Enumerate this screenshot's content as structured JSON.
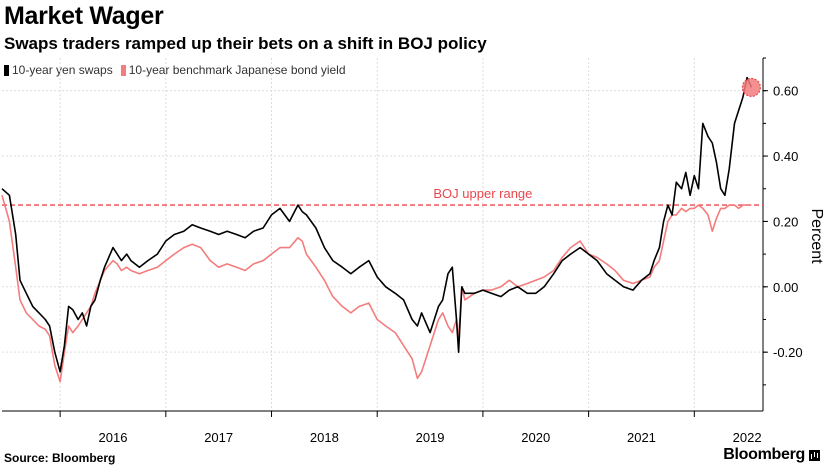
{
  "title": "Market Wager",
  "subtitle": "Swaps traders ramped up their bets on a shift in BOJ policy",
  "legend": [
    {
      "label": "10-year yen swaps",
      "color": "#000000"
    },
    {
      "label": "10-year benchmark Japanese bond yield",
      "color": "#f47c7c"
    }
  ],
  "source": "Source: Bloomberg",
  "brand": "Bloomberg",
  "chart_data": {
    "type": "line",
    "ylabel": "Percent",
    "ylim": [
      -0.38,
      0.7
    ],
    "xlim": [
      2015.45,
      2022.65
    ],
    "yticks": [
      -0.2,
      0.0,
      0.2,
      0.4,
      0.6
    ],
    "ytick_labels": [
      "-0.20",
      "0.00",
      "0.20",
      "0.40",
      "0.60"
    ],
    "xticks": [
      2016,
      2017,
      2018,
      2019,
      2020,
      2021,
      2022
    ],
    "xtick_labels": [
      "2016",
      "2017",
      "2018",
      "2019",
      "2020",
      "2021",
      "2022"
    ],
    "grid": true,
    "reference_line": {
      "y": 0.25,
      "label": "BOJ upper range",
      "color": "#e8464c"
    },
    "highlight": {
      "x": 2022.54,
      "y": 0.61,
      "color": "#f47c7c"
    },
    "series": [
      {
        "name": "10-year yen swaps",
        "color": "#000000",
        "x": [
          2015.45,
          2015.52,
          2015.58,
          2015.62,
          2015.68,
          2015.74,
          2015.8,
          2015.86,
          2015.9,
          2015.95,
          2016.0,
          2016.04,
          2016.08,
          2016.12,
          2016.17,
          2016.21,
          2016.25,
          2016.29,
          2016.33,
          2016.38,
          2016.42,
          2016.5,
          2016.54,
          2016.58,
          2016.63,
          2016.67,
          2016.75,
          2016.83,
          2016.92,
          2017.0,
          2017.08,
          2017.17,
          2017.25,
          2017.33,
          2017.42,
          2017.5,
          2017.58,
          2017.67,
          2017.75,
          2017.83,
          2017.92,
          2018.0,
          2018.08,
          2018.17,
          2018.25,
          2018.29,
          2018.33,
          2018.42,
          2018.5,
          2018.58,
          2018.67,
          2018.75,
          2018.83,
          2018.92,
          2019.0,
          2019.08,
          2019.17,
          2019.25,
          2019.33,
          2019.38,
          2019.42,
          2019.5,
          2019.58,
          2019.62,
          2019.67,
          2019.71,
          2019.75,
          2019.77,
          2019.8,
          2019.83,
          2019.92,
          2020.0,
          2020.08,
          2020.17,
          2020.25,
          2020.33,
          2020.42,
          2020.5,
          2020.58,
          2020.67,
          2020.75,
          2020.83,
          2020.92,
          2021.0,
          2021.08,
          2021.17,
          2021.25,
          2021.33,
          2021.42,
          2021.5,
          2021.58,
          2021.62,
          2021.67,
          2021.71,
          2021.75,
          2021.79,
          2021.83,
          2021.88,
          2021.92,
          2021.96,
          2022.0,
          2022.04,
          2022.08,
          2022.13,
          2022.17,
          2022.21,
          2022.25,
          2022.29,
          2022.33,
          2022.38,
          2022.42,
          2022.46,
          2022.5,
          2022.54
        ],
        "values": [
          0.3,
          0.28,
          0.16,
          0.02,
          -0.02,
          -0.06,
          -0.08,
          -0.1,
          -0.12,
          -0.2,
          -0.26,
          -0.18,
          -0.06,
          -0.07,
          -0.1,
          -0.08,
          -0.12,
          -0.06,
          -0.04,
          0.02,
          0.06,
          0.12,
          0.1,
          0.08,
          0.1,
          0.08,
          0.06,
          0.08,
          0.1,
          0.14,
          0.16,
          0.17,
          0.19,
          0.18,
          0.17,
          0.16,
          0.17,
          0.16,
          0.15,
          0.17,
          0.18,
          0.22,
          0.24,
          0.2,
          0.25,
          0.23,
          0.22,
          0.18,
          0.12,
          0.08,
          0.06,
          0.04,
          0.06,
          0.08,
          0.03,
          0.0,
          -0.02,
          -0.04,
          -0.1,
          -0.12,
          -0.08,
          -0.14,
          -0.06,
          -0.04,
          0.04,
          0.06,
          -0.1,
          -0.2,
          0.0,
          -0.02,
          -0.02,
          -0.01,
          -0.02,
          -0.03,
          -0.01,
          0.0,
          -0.02,
          -0.02,
          0.0,
          0.04,
          0.08,
          0.1,
          0.12,
          0.1,
          0.08,
          0.04,
          0.02,
          0.0,
          -0.01,
          0.02,
          0.04,
          0.08,
          0.12,
          0.2,
          0.25,
          0.22,
          0.32,
          0.3,
          0.35,
          0.28,
          0.34,
          0.3,
          0.5,
          0.46,
          0.44,
          0.38,
          0.3,
          0.28,
          0.36,
          0.5,
          0.54,
          0.58,
          0.64,
          0.61
        ]
      },
      {
        "name": "10-year benchmark Japanese bond yield",
        "color": "#f47c7c",
        "x": [
          2015.45,
          2015.52,
          2015.58,
          2015.62,
          2015.68,
          2015.74,
          2015.8,
          2015.86,
          2015.9,
          2015.95,
          2016.0,
          2016.04,
          2016.08,
          2016.12,
          2016.17,
          2016.21,
          2016.25,
          2016.29,
          2016.33,
          2016.38,
          2016.42,
          2016.5,
          2016.54,
          2016.58,
          2016.63,
          2016.67,
          2016.75,
          2016.83,
          2016.92,
          2017.0,
          2017.08,
          2017.17,
          2017.25,
          2017.33,
          2017.42,
          2017.5,
          2017.58,
          2017.67,
          2017.75,
          2017.83,
          2017.92,
          2018.0,
          2018.08,
          2018.17,
          2018.25,
          2018.29,
          2018.33,
          2018.42,
          2018.5,
          2018.58,
          2018.67,
          2018.75,
          2018.83,
          2018.92,
          2019.0,
          2019.08,
          2019.17,
          2019.25,
          2019.33,
          2019.38,
          2019.42,
          2019.5,
          2019.58,
          2019.62,
          2019.67,
          2019.71,
          2019.75,
          2019.77,
          2019.8,
          2019.83,
          2019.92,
          2020.0,
          2020.08,
          2020.17,
          2020.25,
          2020.33,
          2020.42,
          2020.5,
          2020.58,
          2020.67,
          2020.75,
          2020.83,
          2020.92,
          2021.0,
          2021.08,
          2021.17,
          2021.25,
          2021.33,
          2021.42,
          2021.5,
          2021.58,
          2021.62,
          2021.67,
          2021.71,
          2021.75,
          2021.79,
          2021.83,
          2021.88,
          2021.92,
          2021.96,
          2022.0,
          2022.04,
          2022.08,
          2022.13,
          2022.17,
          2022.21,
          2022.25,
          2022.29,
          2022.33,
          2022.38,
          2022.42,
          2022.46,
          2022.5,
          2022.54
        ],
        "values": [
          0.28,
          0.2,
          0.06,
          -0.04,
          -0.08,
          -0.1,
          -0.12,
          -0.13,
          -0.15,
          -0.24,
          -0.29,
          -0.2,
          -0.12,
          -0.14,
          -0.12,
          -0.1,
          -0.08,
          -0.06,
          -0.02,
          0.02,
          0.05,
          0.08,
          0.07,
          0.05,
          0.06,
          0.05,
          0.04,
          0.05,
          0.06,
          0.08,
          0.1,
          0.12,
          0.13,
          0.12,
          0.08,
          0.06,
          0.07,
          0.06,
          0.05,
          0.07,
          0.08,
          0.1,
          0.12,
          0.12,
          0.15,
          0.14,
          0.1,
          0.06,
          0.02,
          -0.03,
          -0.06,
          -0.08,
          -0.06,
          -0.05,
          -0.1,
          -0.12,
          -0.14,
          -0.18,
          -0.22,
          -0.28,
          -0.26,
          -0.18,
          -0.1,
          -0.08,
          -0.12,
          -0.14,
          -0.1,
          -0.16,
          0.0,
          -0.04,
          -0.02,
          -0.01,
          -0.01,
          0.0,
          0.02,
          0.0,
          0.01,
          0.02,
          0.03,
          0.05,
          0.09,
          0.12,
          0.14,
          0.1,
          0.09,
          0.07,
          0.05,
          0.02,
          0.01,
          0.02,
          0.03,
          0.06,
          0.08,
          0.14,
          0.2,
          0.22,
          0.22,
          0.24,
          0.23,
          0.24,
          0.24,
          0.25,
          0.24,
          0.22,
          0.17,
          0.21,
          0.24,
          0.24,
          0.25,
          0.25,
          0.24,
          0.25,
          0.25,
          0.25
        ]
      }
    ]
  }
}
